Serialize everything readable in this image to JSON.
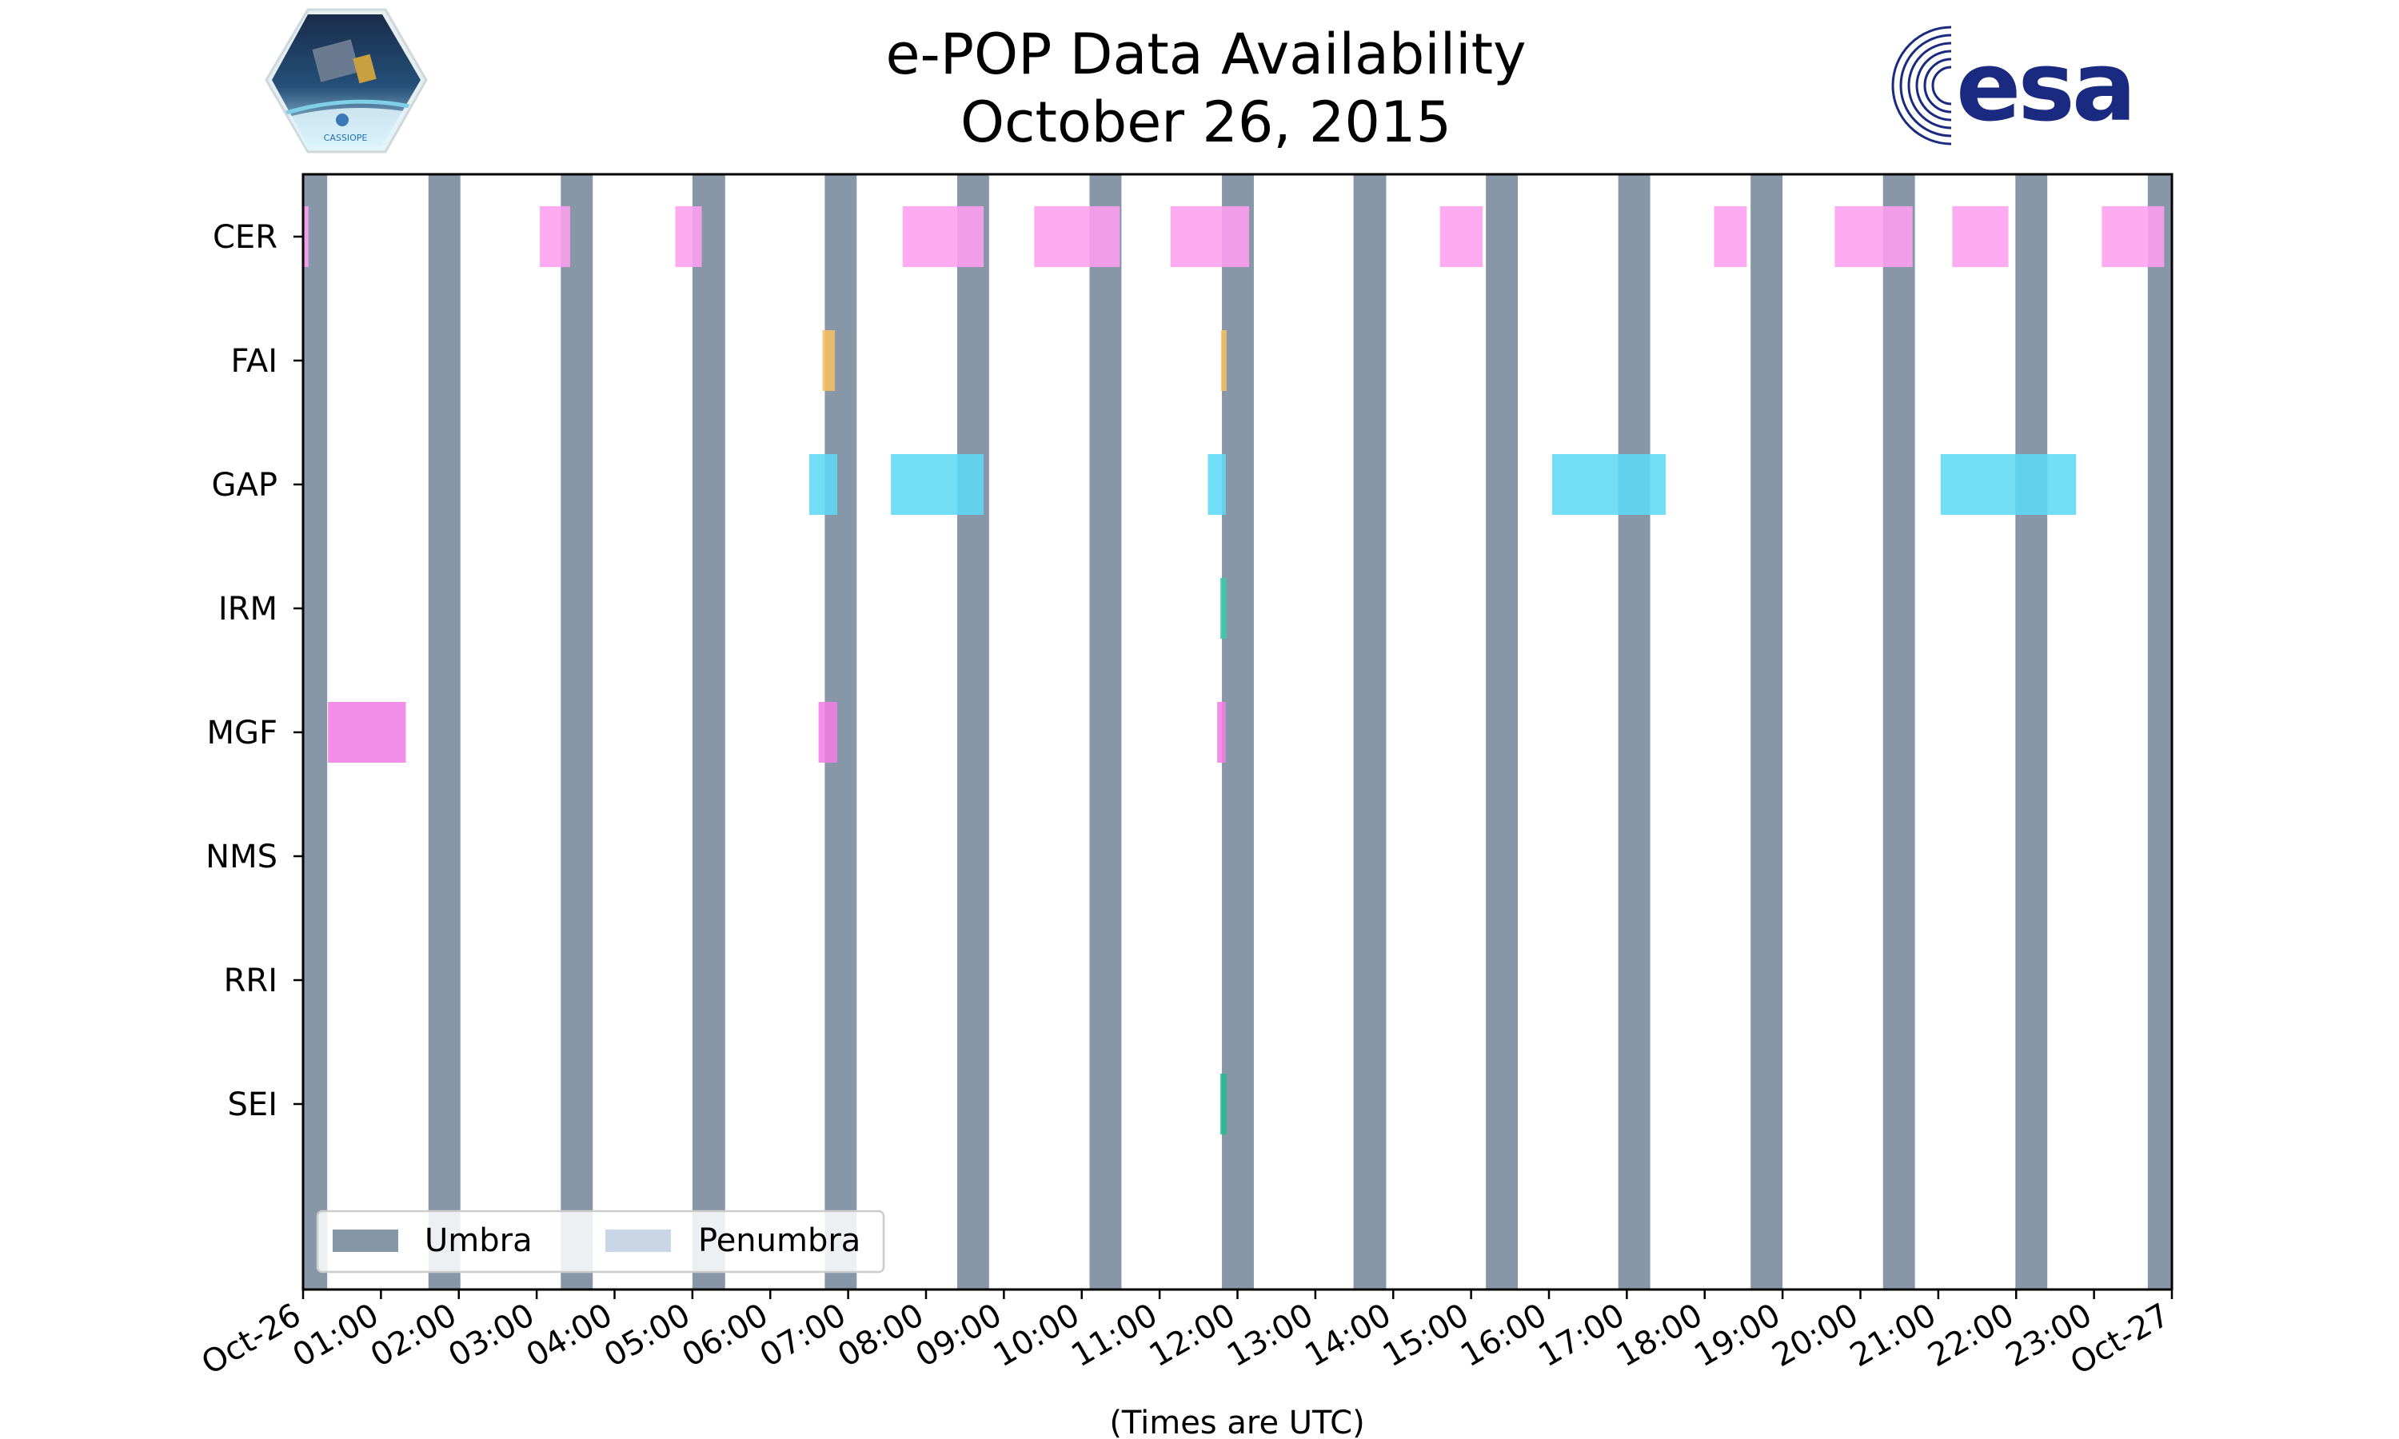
{
  "logos": {
    "cassiope": {
      "text": "CASSIOPE"
    },
    "esa": {
      "text": "esa",
      "color": "#1a2a80"
    }
  },
  "chart_data": {
    "type": "timeline",
    "title": [
      "e-POP Data Availability",
      "October 26, 2015"
    ],
    "xlabel": "(Times are UTC)",
    "ylabel": "",
    "xlim_hours": [
      0,
      24
    ],
    "x_tick_labels": [
      "Oct-26",
      "01:00",
      "02:00",
      "03:00",
      "04:00",
      "05:00",
      "06:00",
      "07:00",
      "08:00",
      "09:00",
      "10:00",
      "11:00",
      "12:00",
      "13:00",
      "14:00",
      "15:00",
      "16:00",
      "17:00",
      "18:00",
      "19:00",
      "20:00",
      "21:00",
      "22:00",
      "23:00",
      "Oct-27"
    ],
    "instruments": [
      "CER",
      "FAI",
      "GAP",
      "IRM",
      "MGF",
      "NMS",
      "RRI",
      "SEI"
    ],
    "legend": {
      "location": "lower-left",
      "entries": [
        {
          "label": "Umbra",
          "color": "#8797a8"
        },
        {
          "label": "Penumbra",
          "color": "#c9d6e6"
        }
      ]
    },
    "umbra_hours": [
      [
        0.0,
        0.31
      ],
      [
        1.61,
        2.02
      ],
      [
        3.31,
        3.72
      ],
      [
        5.0,
        5.42
      ],
      [
        6.7,
        7.11
      ],
      [
        8.4,
        8.81
      ],
      [
        10.1,
        10.51
      ],
      [
        11.8,
        12.21
      ],
      [
        13.49,
        13.91
      ],
      [
        15.19,
        15.6
      ],
      [
        16.89,
        17.3
      ],
      [
        18.59,
        19.0
      ],
      [
        20.29,
        20.7
      ],
      [
        21.99,
        22.4
      ],
      [
        23.69,
        24.0
      ]
    ],
    "series": [
      {
        "name": "CER",
        "color": "#ff9ff0",
        "intervals": [
          [
            0.0,
            0.07
          ],
          [
            3.04,
            3.43
          ],
          [
            4.78,
            5.12
          ],
          [
            7.7,
            8.74
          ],
          [
            9.39,
            10.49
          ],
          [
            11.14,
            12.15
          ],
          [
            14.6,
            15.15
          ],
          [
            18.12,
            18.54
          ],
          [
            19.67,
            20.67
          ],
          [
            21.18,
            21.9
          ],
          [
            23.1,
            23.9
          ]
        ]
      },
      {
        "name": "FAI",
        "color": "#f5c062",
        "intervals": [
          [
            6.67,
            6.83
          ],
          [
            11.79,
            11.86
          ]
        ]
      },
      {
        "name": "GAP",
        "color": "#5ddaf5",
        "intervals": [
          [
            6.5,
            6.86
          ],
          [
            7.55,
            8.74
          ],
          [
            11.62,
            11.85
          ],
          [
            16.04,
            17.5
          ],
          [
            21.03,
            22.77
          ]
        ]
      },
      {
        "name": "IRM",
        "color": "#3cc8a8",
        "intervals": [
          [
            11.78,
            11.86
          ]
        ]
      },
      {
        "name": "MGF",
        "color": "#f07ee4",
        "intervals": [
          [
            0.32,
            1.32
          ],
          [
            6.62,
            6.86
          ],
          [
            11.74,
            11.85
          ]
        ]
      },
      {
        "name": "NMS",
        "color": "#888888",
        "intervals": []
      },
      {
        "name": "RRI",
        "color": "#888888",
        "intervals": []
      },
      {
        "name": "SEI",
        "color": "#28b890",
        "intervals": [
          [
            11.78,
            11.86
          ]
        ]
      }
    ]
  }
}
